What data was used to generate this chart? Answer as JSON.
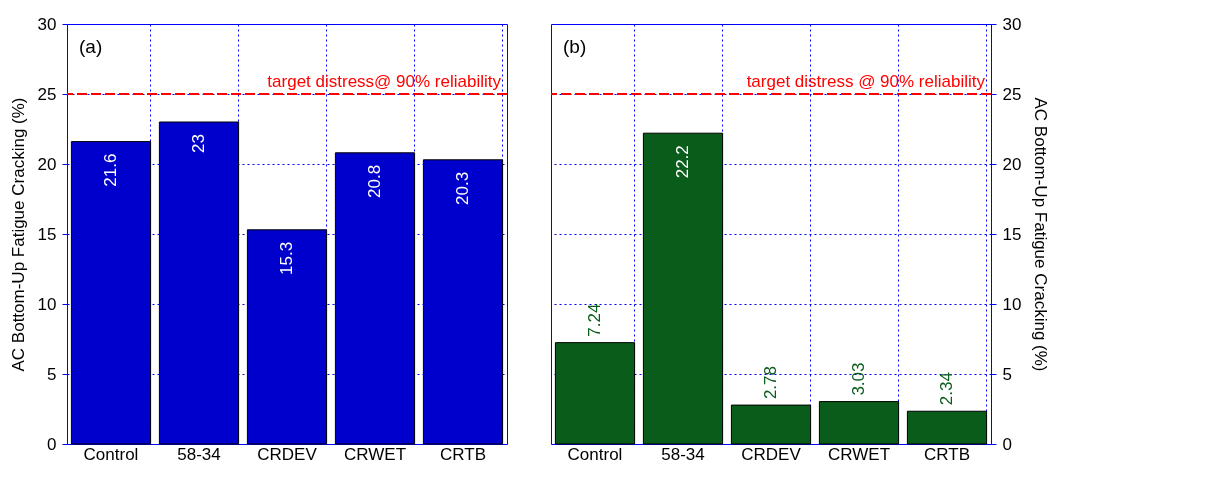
{
  "chart_data": [
    {
      "type": "bar",
      "categories": [
        "Control",
        "58-34",
        "CRDEV",
        "CRWET",
        "CRTB"
      ],
      "values": [
        21.6,
        23,
        15.3,
        20.8,
        20.3
      ],
      "color": "#0000cc",
      "ylim": [
        0,
        30
      ],
      "yticks": [
        0,
        5,
        10,
        15,
        20,
        25,
        30
      ],
      "ylabel": "AC Bottom-Up Fatigue Cracking (%)",
      "grid": true,
      "data_labels": true,
      "ref_lines": [
        {
          "axis": "y",
          "value": 25,
          "label": "target distress@ 90% reliability",
          "color": "#ff0000",
          "line_style": "dashed"
        }
      ],
      "annotations": [
        "(a)"
      ]
    },
    {
      "type": "bar",
      "categories": [
        "Control",
        "58-34",
        "CRDEV",
        "CRWET",
        "CRTB"
      ],
      "values": [
        7.24,
        22.2,
        2.78,
        3.03,
        2.34
      ],
      "color": "#0a5c1a",
      "ylim": [
        0,
        30
      ],
      "yticks": [
        0,
        5,
        10,
        15,
        20,
        25,
        30
      ],
      "ylabel": "AC Bottom-Up Fatigue Cracking (%)",
      "grid": true,
      "data_labels": true,
      "ref_lines": [
        {
          "axis": "y",
          "value": 25,
          "label": "target distress @ 90% reliability",
          "color": "#ff0000",
          "line_style": "dashed"
        }
      ],
      "annotations": [
        "(b)"
      ]
    }
  ]
}
